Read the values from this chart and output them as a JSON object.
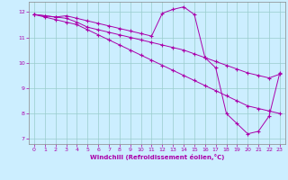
{
  "xlabel": "Windchill (Refroidissement éolien,°C)",
  "ylabel": "",
  "xlim": [
    -0.5,
    23.5
  ],
  "ylim": [
    6.8,
    12.4
  ],
  "xticks": [
    0,
    1,
    2,
    3,
    4,
    5,
    6,
    7,
    8,
    9,
    10,
    11,
    12,
    13,
    14,
    15,
    16,
    17,
    18,
    19,
    20,
    21,
    22,
    23
  ],
  "yticks": [
    7,
    8,
    9,
    10,
    11,
    12
  ],
  "bg_color": "#cceeff",
  "line_color": "#aa00aa",
  "grid_color": "#99cccc",
  "line1_x": [
    0,
    1,
    2,
    3,
    4,
    5,
    6,
    7,
    8,
    9,
    10,
    11,
    12,
    13,
    14,
    15,
    16,
    17,
    18,
    19,
    20,
    21,
    22,
    23
  ],
  "line1_y": [
    11.9,
    11.85,
    11.8,
    11.85,
    11.75,
    11.65,
    11.55,
    11.45,
    11.35,
    11.25,
    11.15,
    11.05,
    11.95,
    12.1,
    12.2,
    11.9,
    10.2,
    9.8,
    8.0,
    7.6,
    7.2,
    7.3,
    7.9,
    9.6
  ],
  "line2_x": [
    0,
    1,
    2,
    3,
    4,
    5,
    6,
    7,
    8,
    9,
    10,
    11,
    12,
    13,
    14,
    15,
    16,
    17,
    18,
    19,
    20,
    21,
    22,
    23
  ],
  "line2_y": [
    11.9,
    11.85,
    11.8,
    11.75,
    11.6,
    11.4,
    11.3,
    11.2,
    11.1,
    11.0,
    10.9,
    10.8,
    10.7,
    10.6,
    10.5,
    10.35,
    10.2,
    10.05,
    9.9,
    9.75,
    9.6,
    9.5,
    9.4,
    9.55
  ],
  "line3_x": [
    0,
    1,
    2,
    3,
    4,
    5,
    6,
    7,
    8,
    9,
    10,
    11,
    12,
    13,
    14,
    15,
    16,
    17,
    18,
    19,
    20,
    21,
    22,
    23
  ],
  "line3_y": [
    11.9,
    11.8,
    11.7,
    11.6,
    11.5,
    11.3,
    11.1,
    10.9,
    10.7,
    10.5,
    10.3,
    10.1,
    9.9,
    9.7,
    9.5,
    9.3,
    9.1,
    8.9,
    8.7,
    8.5,
    8.3,
    8.2,
    8.1,
    8.0
  ]
}
